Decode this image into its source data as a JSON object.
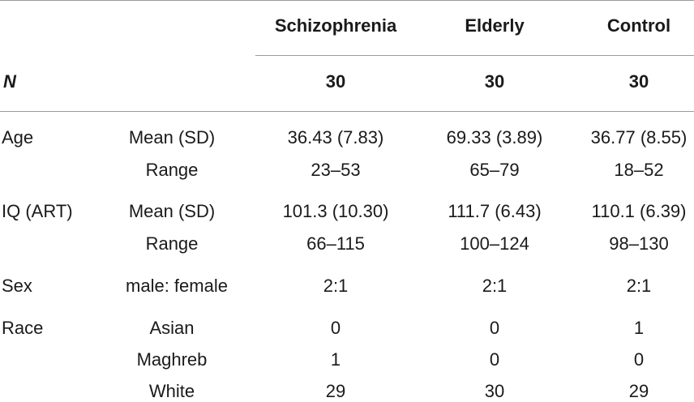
{
  "header": {
    "columns": [
      "Schizophrenia",
      "Elderly",
      "Control"
    ],
    "n_label": "N",
    "n_values": [
      "30",
      "30",
      "30"
    ]
  },
  "rows": [
    {
      "group": "Age",
      "stat": "Mean (SD)",
      "values": [
        "36.43 (7.83)",
        "69.33 (3.89)",
        "36.77 (8.55)"
      ]
    },
    {
      "group": "",
      "stat": "Range",
      "values": [
        "23–53",
        "65–79",
        "18–52"
      ]
    },
    {
      "group": "IQ (ART)",
      "stat": "Mean (SD)",
      "values": [
        "101.3 (10.30)",
        "111.7 (6.43)",
        "110.1 (6.39)"
      ]
    },
    {
      "group": "",
      "stat": "Range",
      "values": [
        "66–115",
        "100–124",
        "98–130"
      ]
    },
    {
      "group": "Sex",
      "stat": "male: female",
      "values": [
        "2:1",
        "2:1",
        "2:1"
      ]
    },
    {
      "group": "Race",
      "stat": "Asian",
      "values": [
        "0",
        "0",
        "1"
      ]
    },
    {
      "group": "",
      "stat": "Maghreb",
      "values": [
        "1",
        "0",
        "0"
      ]
    },
    {
      "group": "",
      "stat": "White",
      "values": [
        "29",
        "30",
        "29"
      ]
    }
  ]
}
